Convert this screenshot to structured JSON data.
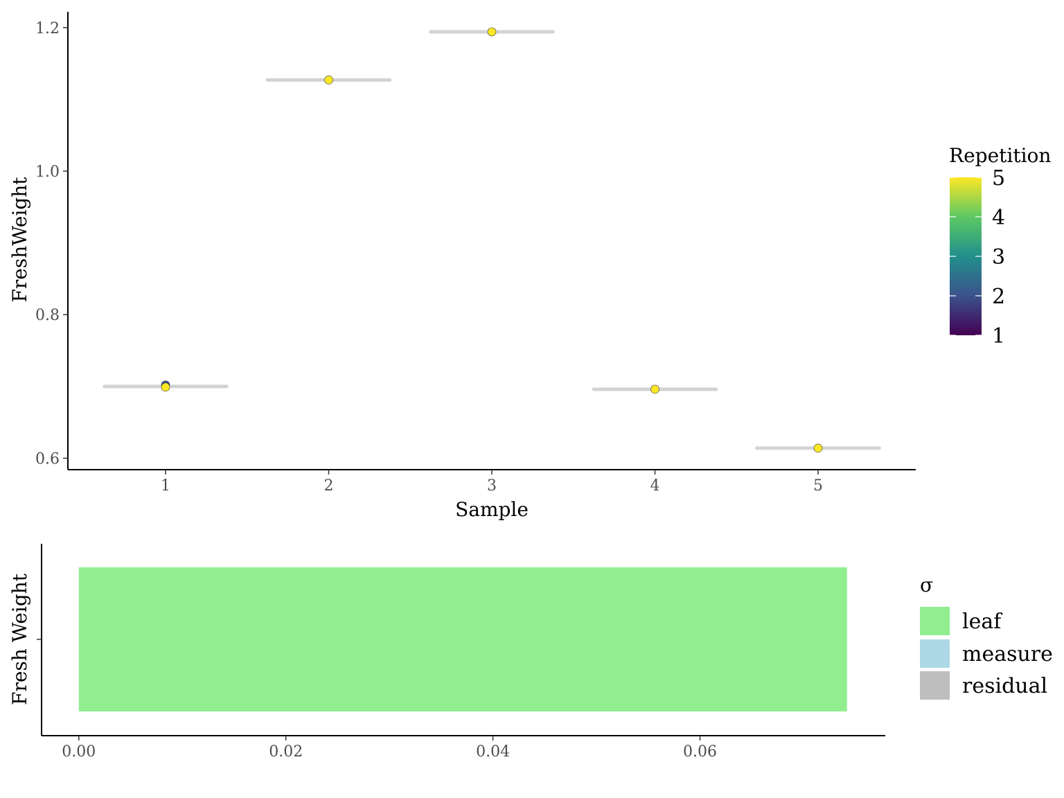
{
  "colors": {
    "interval": "#d3d3d3",
    "point_outline": "#333333",
    "leaf": "#90ee90",
    "measure": "#add8e6",
    "residual": "#bebebe"
  },
  "chart_data": [
    {
      "type": "scatter",
      "xlabel": "Sample",
      "ylabel": "FreshWeight",
      "x_ticks": [
        "1",
        "2",
        "3",
        "4",
        "5"
      ],
      "y_ticks": [
        "0.6",
        "0.8",
        "1.0",
        "1.2"
      ],
      "ylim": [
        0.584,
        1.222
      ],
      "grid": false,
      "intervals": [
        {
          "x": 1,
          "y": 0.7,
          "half_width": 0.375
        },
        {
          "x": 2,
          "y": 1.127,
          "half_width": 0.375
        },
        {
          "x": 3,
          "y": 1.194,
          "half_width": 0.375
        },
        {
          "x": 4,
          "y": 0.696,
          "half_width": 0.375
        },
        {
          "x": 5,
          "y": 0.614,
          "half_width": 0.375
        }
      ],
      "points": [
        {
          "x": 1,
          "y": 0.702,
          "repetition": 2
        },
        {
          "x": 1,
          "y": 0.699,
          "repetition": 5
        },
        {
          "x": 2,
          "y": 1.127,
          "repetition": 5
        },
        {
          "x": 3,
          "y": 1.194,
          "repetition": 5
        },
        {
          "x": 4,
          "y": 0.696,
          "repetition": 5
        },
        {
          "x": 5,
          "y": 0.614,
          "repetition": 5
        }
      ],
      "legend": {
        "title": "Repetition",
        "placement": "right",
        "labels": [
          "5",
          "4",
          "3",
          "2",
          "1"
        ],
        "range": [
          1,
          5
        ],
        "colormap": [
          "#440154",
          "#3b528b",
          "#21908c",
          "#5dc863",
          "#fde725"
        ]
      }
    },
    {
      "type": "bar",
      "orientation": "horizontal",
      "ylabel": "Fresh Weight",
      "x_ticks": [
        "0.00",
        "0.02",
        "0.04",
        "0.06"
      ],
      "xlim": [
        -0.0036,
        0.0779
      ],
      "grid": false,
      "series": [
        {
          "name": "leaf",
          "values": [
            0.0742
          ]
        },
        {
          "name": "measure",
          "values": [
            0
          ]
        },
        {
          "name": "residual",
          "values": [
            0
          ]
        }
      ],
      "legend": {
        "title": "σ",
        "placement": "right",
        "labels": [
          "leaf",
          "measure",
          "residual"
        ]
      }
    }
  ]
}
